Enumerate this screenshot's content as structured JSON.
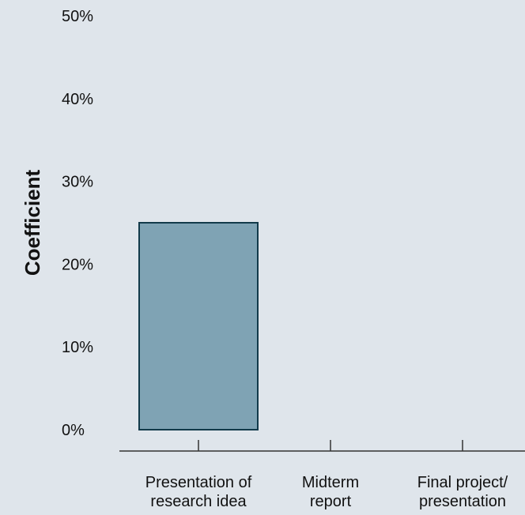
{
  "chart_data": {
    "type": "bar",
    "categories": [
      [
        "Presentation of",
        "research idea"
      ],
      [
        "Midterm",
        "report"
      ],
      [
        "Final project/",
        "presentation"
      ]
    ],
    "values": [
      25,
      null,
      null
    ],
    "ylabel": "Coefficient",
    "xlabel": "",
    "ylim": [
      0,
      50
    ],
    "yticks": [
      0,
      10,
      20,
      30,
      40,
      50
    ],
    "ytick_labels": [
      "0%",
      "10%",
      "20%",
      "30%",
      "40%",
      "50%"
    ],
    "grid": false,
    "colors": {
      "background": "#dfe5eb",
      "bar_fill": "#7fa3b4",
      "bar_stroke": "#123a4a",
      "axis": "#333333",
      "text": "#111111"
    }
  }
}
